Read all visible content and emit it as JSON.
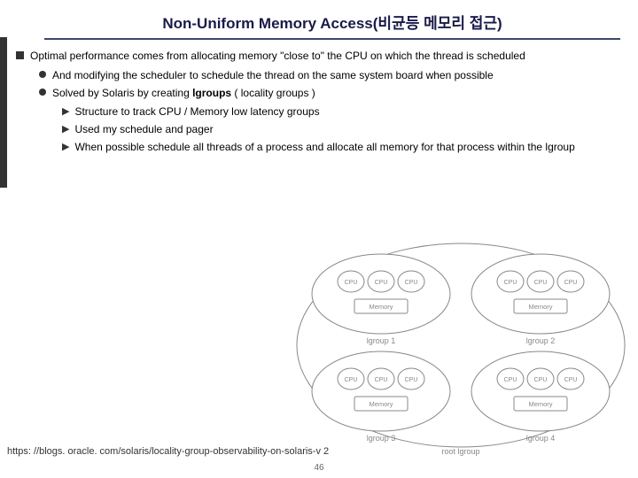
{
  "title": "Non-Uniform Memory Access(비균등 메모리 접근)",
  "b1": "Optimal performance comes from allocating memory \"close to\" the CPU on which the thread is scheduled",
  "b2a": "And modifying the scheduler to schedule the thread on the same system board when possible",
  "b2b_pre": "Solved by Solaris by creating ",
  "b2b_bold": "lgroups",
  "b2b_post": " ( locality groups )",
  "b3a": "Structure to track CPU / Memory low latency groups",
  "b3b": "Used my schedule and pager",
  "b3c": "When possible schedule all threads of a process and allocate all memory for that process within the lgroup",
  "url": "https: //blogs. oracle. com/solaris/locality-group-observability-on-solaris-v 2",
  "page": "46",
  "diagram": {
    "groups": [
      "lgroup 1",
      "lgroup 2",
      "lgroup 3",
      "lgroup 4"
    ],
    "cpu_label": "CPU",
    "mem_label": "Memory",
    "root_label": "root lgroup",
    "colors": {
      "stroke": "#888888",
      "text": "#888888",
      "bg": "#ffffff"
    }
  }
}
